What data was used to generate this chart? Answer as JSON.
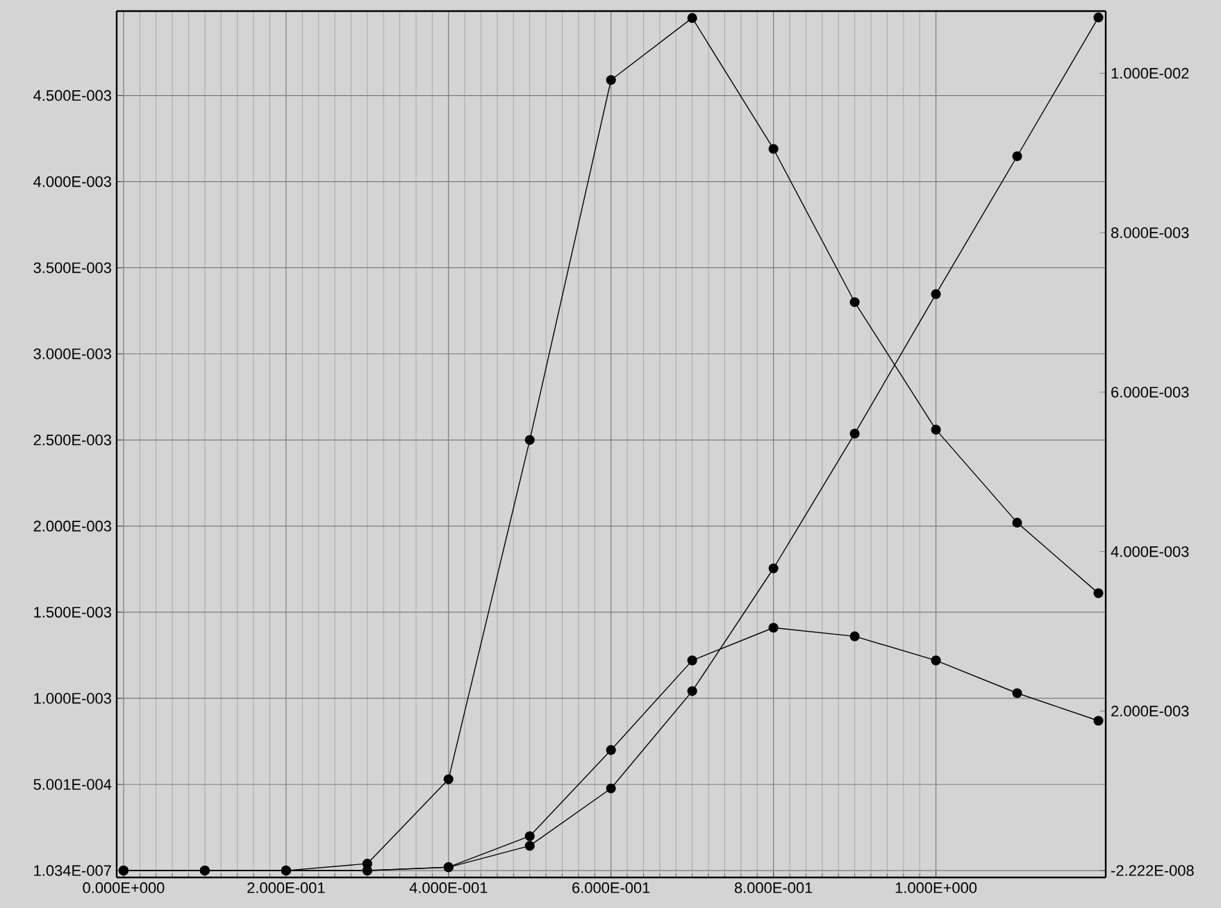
{
  "chart_data": {
    "type": "line",
    "marker": "circle",
    "line_style": "solid",
    "grid": true,
    "x": [
      0,
      0.1,
      0.2,
      0.3,
      0.4,
      0.5,
      0.6,
      0.7,
      0.8,
      0.9,
      1.0,
      1.1,
      1.2
    ],
    "series": [
      {
        "color": "#000000",
        "values": [
          0,
          0,
          0,
          4e-05,
          0.00053,
          0.0025,
          0.00459,
          0.00495,
          0.00419,
          0.0033,
          0.00256,
          0.00202,
          0.00161
        ]
      },
      {
        "color": "#000000",
        "axis": "y2",
        "values": [
          0,
          0,
          0,
          0,
          4e-05,
          0.00031,
          0.00103,
          0.00225,
          0.00379,
          0.00548,
          0.00723,
          0.00896,
          0.0107
        ]
      },
      {
        "color": "#000000",
        "values": [
          0,
          0,
          0,
          0,
          2e-05,
          0.0002,
          0.0007,
          0.00122,
          0.00141,
          0.00136,
          0.00122,
          0.00103,
          0.00087
        ]
      }
    ],
    "xlim": [
      -0.0085,
      1.209
    ],
    "xticks": [
      {
        "value": 0,
        "label": "0.000E+000"
      },
      {
        "value": 0.2,
        "label": "2.000E-001"
      },
      {
        "value": 0.4,
        "label": "4.000E-001"
      },
      {
        "value": 0.6,
        "label": "6.000E-001"
      },
      {
        "value": 0.8,
        "label": "8.000E-001"
      },
      {
        "value": 1.0,
        "label": "1.000E+000"
      }
    ],
    "ylim": [
      -4e-05,
      0.00499
    ],
    "yticks": [
      {
        "value": 1.034e-07,
        "label": "1.034E-007"
      },
      {
        "value": 0.0005001,
        "label": "5.001E-004"
      },
      {
        "value": 0.001,
        "label": "1.000E-003"
      },
      {
        "value": 0.0015,
        "label": "1.500E-003"
      },
      {
        "value": 0.002,
        "label": "2.000E-003"
      },
      {
        "value": 0.0025,
        "label": "2.500E-003"
      },
      {
        "value": 0.003,
        "label": "3.000E-003"
      },
      {
        "value": 0.0035,
        "label": "3.500E-003"
      },
      {
        "value": 0.004,
        "label": "4.000E-003"
      },
      {
        "value": 0.0045,
        "label": "4.500E-003"
      }
    ],
    "y2lim": [
      -8.7e-05,
      0.01078
    ],
    "y2ticks": [
      {
        "value": -2.222e-08,
        "label": "-2.222E-008"
      },
      {
        "value": 0.002,
        "label": "2.000E-003"
      },
      {
        "value": 0.004,
        "label": "4.000E-003"
      },
      {
        "value": 0.006,
        "label": "6.000E-003"
      },
      {
        "value": 0.008,
        "label": "8.000E-003"
      },
      {
        "value": 0.01,
        "label": "1.000E-002"
      }
    ]
  }
}
